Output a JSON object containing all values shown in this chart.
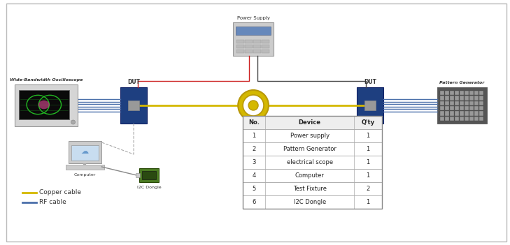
{
  "bg_color": "#ffffff",
  "border_color": "#aaaaaa",
  "table_headers": [
    "No.",
    "Device",
    "Q'ty"
  ],
  "table_rows": [
    [
      "1",
      "Power supply",
      "1"
    ],
    [
      "2",
      "Pattern Generator",
      "1"
    ],
    [
      "3",
      "electrical scope",
      "1"
    ],
    [
      "4",
      "Computer",
      "1"
    ],
    [
      "5",
      "Test Fixture",
      "2"
    ],
    [
      "6",
      "I2C Dongle",
      "1"
    ]
  ],
  "legend": [
    {
      "label": "Copper cable",
      "color": "#d4b800"
    },
    {
      "label": "RF cable",
      "color": "#4a6faa"
    }
  ],
  "dut_color": "#1e3f80",
  "power_supply_label": "Power Supply",
  "oscilloscope_label": "Wide-Bandwidth Oscilloscope",
  "pattern_gen_label": "Pattern Generator",
  "computer_label": "Computer",
  "i2c_label": "I2C Dongle",
  "dut_label": "DUT",
  "copper_color": "#d4b800",
  "rf_color": "#4a6faa",
  "wire_red": "#cc2222",
  "wire_dark": "#444444"
}
